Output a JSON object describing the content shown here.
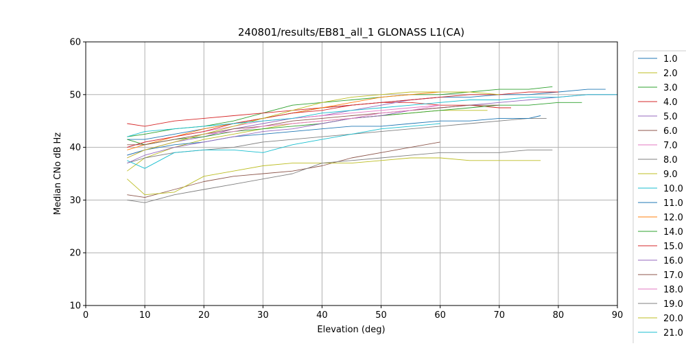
{
  "chart_data": {
    "type": "line",
    "title": "240801/results/EB81_all_1 GLONASS L1(CA)",
    "xlabel": "Elevation (deg)",
    "ylabel": "Median CNo dB Hz",
    "xlim": [
      0,
      90
    ],
    "ylim": [
      10,
      60
    ],
    "xticks": [
      "0",
      "10",
      "20",
      "30",
      "40",
      "50",
      "60",
      "70",
      "80",
      "90"
    ],
    "yticks": [
      "10",
      "20",
      "30",
      "40",
      "50",
      "60"
    ],
    "grid": true,
    "legend_position": "right",
    "series": [
      {
        "name": "1.0",
        "color": "#1f77b4",
        "x": [
          7,
          10,
          15,
          20,
          25,
          30,
          35,
          40,
          45,
          50,
          55,
          60,
          65,
          70,
          75,
          80,
          85,
          88
        ],
        "y": [
          41.5,
          41.5,
          42.5,
          43.5,
          44.5,
          45.5,
          46.5,
          47.5,
          48.0,
          48.5,
          49.0,
          49.5,
          49.5,
          50.0,
          50.0,
          50.5,
          51.0,
          51.0
        ]
      },
      {
        "name": "2.0",
        "color": "#bcbd22",
        "x": [
          7,
          10,
          15,
          20,
          25,
          30,
          35,
          40,
          45,
          50,
          55,
          60,
          65,
          68
        ],
        "y": [
          35.5,
          38.0,
          40.0,
          41.5,
          42.5,
          43.5,
          44.5,
          45.0,
          45.5,
          46.0,
          46.5,
          47.0,
          47.0,
          47.0
        ]
      },
      {
        "name": "3.0",
        "color": "#2ca02c",
        "x": [
          7,
          10,
          15,
          20,
          25,
          30,
          35,
          40,
          45,
          50,
          55,
          60,
          65,
          70,
          75,
          79
        ],
        "y": [
          42.0,
          42.5,
          43.5,
          44.0,
          45.0,
          46.5,
          48.0,
          48.5,
          49.0,
          49.5,
          50.0,
          50.0,
          50.5,
          51.0,
          51.0,
          51.5
        ]
      },
      {
        "name": "4.0",
        "color": "#d62728",
        "x": [
          7,
          10,
          15,
          20,
          25,
          30,
          35,
          40,
          45,
          50,
          55,
          60,
          65,
          70,
          72
        ],
        "y": [
          44.5,
          44.0,
          45.0,
          45.5,
          46.0,
          46.5,
          47.0,
          47.5,
          48.0,
          48.5,
          48.5,
          48.0,
          48.0,
          47.5,
          47.5
        ]
      },
      {
        "name": "5.0",
        "color": "#9467bd",
        "x": [
          7,
          10,
          15,
          20,
          25,
          30,
          35,
          40,
          45,
          50,
          55,
          60
        ],
        "y": [
          38.5,
          39.5,
          41.0,
          42.0,
          43.5,
          44.5,
          45.5,
          46.0,
          47.0,
          48.0,
          49.0,
          49.5
        ]
      },
      {
        "name": "6.0",
        "color": "#8c564b",
        "x": [
          7,
          10,
          15,
          20,
          25,
          30,
          35,
          40,
          45,
          50,
          55,
          60
        ],
        "y": [
          31.0,
          30.5,
          32.0,
          33.5,
          34.5,
          35.0,
          35.5,
          36.5,
          38.0,
          39.0,
          40.0,
          41.0
        ]
      },
      {
        "name": "7.0",
        "color": "#e377c2",
        "x": [
          7,
          10,
          15,
          20,
          25,
          30,
          35,
          40,
          45,
          50,
          55,
          60
        ],
        "y": [
          40.0,
          41.0,
          42.0,
          43.0,
          44.0,
          45.0,
          45.5,
          46.0,
          46.5,
          47.0,
          47.5,
          48.0
        ]
      },
      {
        "name": "8.0",
        "color": "#7f7f7f",
        "x": [
          7,
          10,
          15,
          20,
          25,
          30,
          35,
          40,
          45,
          50,
          55,
          60,
          65,
          70,
          75,
          78
        ],
        "y": [
          37.0,
          38.0,
          39.0,
          39.5,
          40.0,
          41.0,
          41.5,
          42.0,
          42.5,
          43.0,
          43.5,
          44.0,
          44.5,
          45.0,
          45.5,
          45.5
        ]
      },
      {
        "name": "9.0",
        "color": "#bcbd22",
        "x": [
          7,
          10,
          15,
          20,
          25,
          30,
          35,
          40,
          45,
          50,
          55,
          60,
          65,
          70,
          75,
          77
        ],
        "y": [
          34.0,
          31.0,
          31.5,
          34.5,
          35.5,
          36.5,
          37.0,
          37.0,
          37.0,
          37.5,
          38.0,
          38.0,
          37.5,
          37.5,
          37.5,
          37.5
        ]
      },
      {
        "name": "10.0",
        "color": "#17becf",
        "x": [
          7,
          10,
          15,
          20,
          25,
          30,
          35,
          40,
          45,
          50,
          55,
          60
        ],
        "y": [
          37.5,
          36.0,
          39.0,
          39.5,
          39.5,
          39.0,
          40.5,
          41.5,
          42.5,
          43.5,
          44.0,
          44.5
        ]
      },
      {
        "name": "11.0",
        "color": "#1f77b4",
        "x": [
          7,
          10,
          15,
          20,
          25,
          30,
          35,
          40,
          45,
          50,
          55,
          60,
          65,
          70,
          75,
          77
        ],
        "y": [
          38.5,
          39.5,
          40.5,
          41.0,
          42.0,
          42.5,
          43.0,
          43.5,
          44.0,
          44.0,
          44.5,
          45.0,
          45.0,
          45.5,
          45.5,
          46.0
        ]
      },
      {
        "name": "12.0",
        "color": "#ff7f0e",
        "x": [
          7,
          10,
          15,
          20,
          25,
          30,
          35,
          40,
          45,
          50,
          55,
          60,
          63
        ],
        "y": [
          39.5,
          40.5,
          42.0,
          43.5,
          44.5,
          45.5,
          46.5,
          47.5,
          48.5,
          49.5,
          50.0,
          50.5,
          50.5
        ]
      },
      {
        "name": "14.0",
        "color": "#2ca02c",
        "x": [
          7,
          10,
          15,
          20,
          25,
          30,
          35,
          40,
          45,
          50,
          55,
          60,
          65,
          70,
          75,
          80,
          84
        ],
        "y": [
          41.5,
          40.5,
          41.5,
          42.0,
          43.0,
          43.5,
          44.0,
          44.5,
          45.5,
          46.0,
          46.5,
          47.0,
          47.5,
          48.0,
          48.0,
          48.5,
          48.5
        ]
      },
      {
        "name": "15.0",
        "color": "#d62728",
        "x": [
          7,
          10,
          15,
          20,
          25,
          30,
          35,
          40,
          45,
          50,
          55,
          60,
          65,
          70,
          75,
          80
        ],
        "y": [
          40.0,
          41.0,
          42.0,
          43.0,
          44.5,
          45.5,
          46.5,
          47.0,
          48.0,
          48.5,
          49.0,
          49.5,
          50.0,
          50.0,
          50.5,
          50.5
        ]
      },
      {
        "name": "16.0",
        "color": "#9467bd",
        "x": [
          7,
          10,
          15,
          20,
          25,
          30,
          35,
          40,
          45,
          50,
          55,
          60,
          65,
          70,
          75,
          80,
          85,
          90
        ],
        "y": [
          37.0,
          38.5,
          40.0,
          41.0,
          42.0,
          43.0,
          43.5,
          44.5,
          45.5,
          46.0,
          47.0,
          47.5,
          48.0,
          48.5,
          49.0,
          49.5,
          50.0,
          50.0
        ]
      },
      {
        "name": "17.0",
        "color": "#8c564b",
        "x": [
          7,
          10,
          15,
          20,
          25,
          30,
          35,
          40,
          45,
          50,
          55,
          60,
          65,
          70
        ],
        "y": [
          40.5,
          40.5,
          41.5,
          42.5,
          43.5,
          44.0,
          45.0,
          45.5,
          46.0,
          46.5,
          47.0,
          47.5,
          48.0,
          48.0
        ]
      },
      {
        "name": "18.0",
        "color": "#e377c2",
        "x": [
          7,
          10,
          15,
          20,
          25,
          30,
          35,
          40,
          45,
          50,
          55,
          60
        ],
        "y": [
          38.0,
          39.5,
          41.0,
          42.5,
          43.0,
          44.0,
          44.5,
          45.0,
          45.5,
          46.5,
          47.0,
          48.0
        ]
      },
      {
        "name": "19.0",
        "color": "#7f7f7f",
        "x": [
          7,
          10,
          15,
          20,
          25,
          30,
          35,
          40,
          45,
          50,
          55,
          60,
          65,
          70,
          75,
          79
        ],
        "y": [
          30.0,
          29.5,
          31.0,
          32.0,
          33.0,
          34.0,
          35.0,
          37.0,
          37.5,
          38.0,
          38.5,
          39.0,
          39.0,
          39.0,
          39.5,
          39.5
        ]
      },
      {
        "name": "20.0",
        "color": "#bcbd22",
        "x": [
          7,
          10,
          15,
          20,
          25,
          30,
          35,
          40,
          45,
          50,
          55,
          60,
          65,
          70
        ],
        "y": [
          38.0,
          39.5,
          41.0,
          42.5,
          44.0,
          45.5,
          47.0,
          48.5,
          49.5,
          50.0,
          50.5,
          50.5,
          50.5,
          50.0
        ]
      },
      {
        "name": "21.0",
        "color": "#17becf",
        "x": [
          7,
          10,
          15,
          20,
          25,
          30,
          35,
          40,
          45,
          50,
          55,
          60,
          65,
          70,
          75,
          80,
          85,
          90
        ],
        "y": [
          42.0,
          43.0,
          43.5,
          44.0,
          44.5,
          45.0,
          45.5,
          46.5,
          47.0,
          47.5,
          48.0,
          48.5,
          49.0,
          49.0,
          49.5,
          49.5,
          50.0,
          50.0
        ]
      }
    ]
  }
}
